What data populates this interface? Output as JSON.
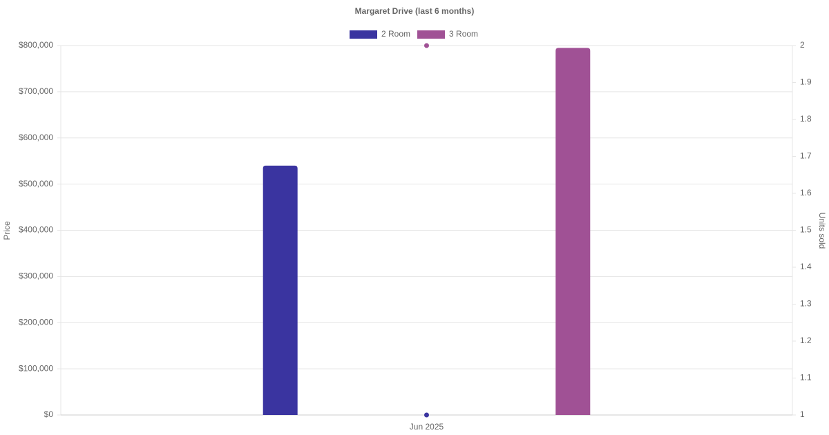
{
  "chart_data": {
    "type": "bar",
    "title": "Margaret Drive (last 6 months)",
    "categories": [
      "Jun 2025"
    ],
    "series": [
      {
        "name": "2 Room",
        "color": "#3a34a0",
        "values": [
          540000
        ],
        "units": [
          1
        ]
      },
      {
        "name": "3 Room",
        "color": "#a05195",
        "values": [
          795000
        ],
        "units": [
          2
        ]
      }
    ],
    "ylabel": "Price",
    "y2label": "Units sold",
    "ylim": [
      0,
      800000
    ],
    "yticks": [
      {
        "value": 0,
        "label": "$0"
      },
      {
        "value": 100000,
        "label": "$100,000"
      },
      {
        "value": 200000,
        "label": "$200,000"
      },
      {
        "value": 300000,
        "label": "$300,000"
      },
      {
        "value": 400000,
        "label": "$400,000"
      },
      {
        "value": 500000,
        "label": "$500,000"
      },
      {
        "value": 600000,
        "label": "$600,000"
      },
      {
        "value": 700000,
        "label": "$700,000"
      },
      {
        "value": 800000,
        "label": "$800,000"
      }
    ],
    "y2lim": [
      1,
      2
    ],
    "y2ticks": [
      1,
      1.1,
      1.2,
      1.3,
      1.4,
      1.5,
      1.6,
      1.7,
      1.8,
      1.9,
      2
    ],
    "grid": true,
    "legend": "top"
  }
}
